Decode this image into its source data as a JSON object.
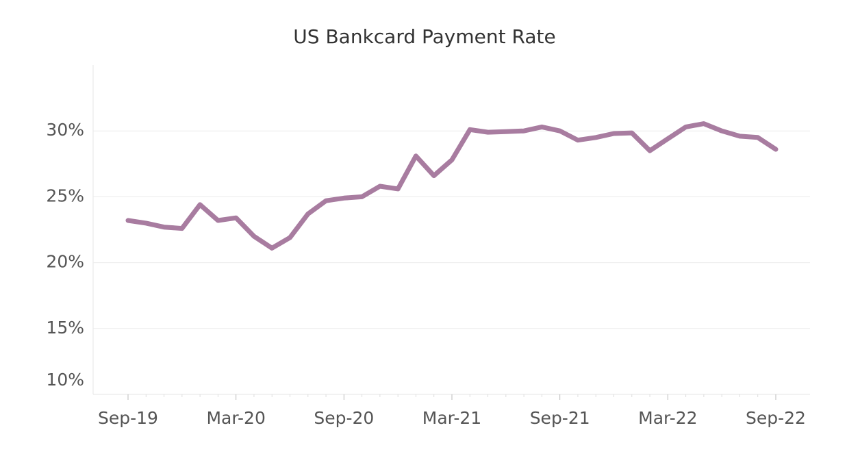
{
  "chart_data": {
    "type": "line",
    "title": "US Bankcard Payment Rate",
    "categories": [
      "Sep-19",
      null,
      null,
      null,
      null,
      null,
      "Mar-20",
      null,
      null,
      null,
      null,
      null,
      "Sep-20",
      null,
      null,
      null,
      null,
      null,
      "Mar-21",
      null,
      null,
      null,
      null,
      null,
      "Sep-21",
      null,
      null,
      null,
      null,
      null,
      "Mar-22",
      null,
      null,
      null,
      null,
      null,
      "Sep-22"
    ],
    "values": [
      23.2,
      23.0,
      22.7,
      22.6,
      24.4,
      23.2,
      23.4,
      22.0,
      21.1,
      21.9,
      23.7,
      24.7,
      24.9,
      25.0,
      25.8,
      25.6,
      28.1,
      26.6,
      27.8,
      30.1,
      29.9,
      29.95,
      30.0,
      30.3,
      30.0,
      29.3,
      29.5,
      29.8,
      29.85,
      28.5,
      29.4,
      30.3,
      30.55,
      30.0,
      29.6,
      29.5,
      28.6
    ],
    "color": "#a87ca0",
    "ylim": [
      10,
      35
    ],
    "yticks": [
      {
        "value": 10,
        "label": "10%"
      },
      {
        "value": 15,
        "label": "15%"
      },
      {
        "value": 20,
        "label": "20%"
      },
      {
        "value": 25,
        "label": "25%"
      },
      {
        "value": 30,
        "label": "30%"
      }
    ],
    "grid": true
  }
}
